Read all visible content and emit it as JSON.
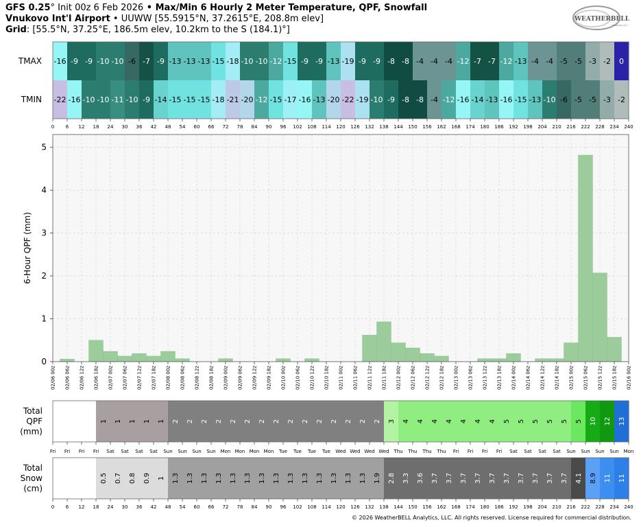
{
  "header": {
    "line1_model": "GFS 0.25",
    "line1_init": "° Init 00z 6 Feb 2026",
    "line1_title": " • Max/Min 6 Hourly 2 Meter Temperature,  QPF,  Snowfall",
    "line2_station": "Vnukovo Int'l Airport",
    "line2_rest": " • UUWW [55.5915°N, 37.2615°E, 208.8m elev]",
    "line3_label": "Grid",
    "line3_rest": ": [55.5°N, 37.25°E, 186.5m elev, 10.2km to the S (184.1)°]"
  },
  "logo": {
    "text": "WEATHERBELL",
    "sub": "Analytics LLC"
  },
  "copyright": "© 2026 WeatherBELL Analytics, LLC. All rights reserved. License required for commercial distribution.",
  "chart_data": [
    {
      "type": "table",
      "name": "temperature",
      "rows": [
        {
          "label": "TMAX",
          "values": [
            -16,
            -9,
            -9,
            -10,
            -10,
            -6,
            -7,
            -9,
            -13,
            -13,
            -13,
            -15,
            -18,
            -10,
            -10,
            -12,
            -15,
            -9,
            -9,
            -13,
            -19,
            -9,
            -9,
            -8,
            -8,
            -4,
            -4,
            -4,
            -12,
            -7,
            -7,
            -12,
            -13,
            -4,
            -4,
            -5,
            -5,
            -3,
            -2,
            0
          ]
        },
        {
          "label": "TMIN",
          "values": [
            -22,
            -16,
            -10,
            -10,
            -11,
            -10,
            -9,
            -14,
            -15,
            -15,
            -15,
            -18,
            -21,
            -20,
            -12,
            -15,
            -17,
            -16,
            -13,
            -20,
            -22,
            -19,
            -10,
            -9,
            -8,
            -8,
            -4,
            -12,
            -16,
            -14,
            -13,
            -16,
            -15,
            -13,
            -10,
            -6,
            -5,
            -5,
            -3,
            -2
          ]
        }
      ],
      "hour_ticks": [
        0,
        6,
        12,
        18,
        24,
        30,
        36,
        42,
        48,
        54,
        60,
        66,
        72,
        78,
        84,
        90,
        96,
        102,
        108,
        114,
        120,
        126,
        132,
        138,
        144,
        150,
        156,
        162,
        168,
        174,
        180,
        186,
        192,
        198,
        204,
        210,
        216,
        222,
        228,
        234,
        240
      ]
    },
    {
      "type": "bar",
      "ylabel": "6-Hour QPF (mm)",
      "ylim": [
        0,
        5.3
      ],
      "yticks": [
        0,
        1,
        2,
        3,
        4,
        5
      ],
      "grid": true,
      "bar_color": "#9ccc9c",
      "x_labels": [
        "02/06 00z",
        "02/06 06z",
        "02/06 12z",
        "02/06 18z",
        "02/07 00z",
        "02/07 06z",
        "02/07 12z",
        "02/07 18z",
        "02/08 00z",
        "02/08 06z",
        "02/08 12z",
        "02/08 18z",
        "02/09 00z",
        "02/09 06z",
        "02/09 12z",
        "02/09 18z",
        "02/10 00z",
        "02/10 06z",
        "02/10 12z",
        "02/10 18z",
        "02/11 00z",
        "02/11 06z",
        "02/11 12z",
        "02/11 18z",
        "02/12 00z",
        "02/12 06z",
        "02/12 12z",
        "02/12 18z",
        "02/13 00z",
        "02/13 06z",
        "02/13 12z",
        "02/13 18z",
        "02/14 00z",
        "02/14 06z",
        "02/14 12z",
        "02/14 18z",
        "02/15 00z",
        "02/15 06z",
        "02/15 12z",
        "02/15 18z",
        "02/16 00z"
      ],
      "values": [
        0.06,
        0,
        0.5,
        0.24,
        0.13,
        0.19,
        0.13,
        0.24,
        0.07,
        0,
        0,
        0.07,
        0,
        0,
        0,
        0.07,
        0,
        0.07,
        0,
        0,
        0,
        0.62,
        0.93,
        0.44,
        0.32,
        0.19,
        0.13,
        0,
        0,
        0.07,
        0.07,
        0.19,
        0,
        0.07,
        0.07,
        0.44,
        4.82,
        2.07,
        0.57,
        0,
        0
      ]
    },
    {
      "type": "table",
      "name": "total_qpf",
      "label_lines": [
        "Total",
        "QPF",
        "(mm)"
      ],
      "values": [
        "",
        "",
        "",
        "1",
        "1",
        "1",
        "1",
        "1",
        "2",
        "2",
        "2",
        "2",
        "2",
        "2",
        "2",
        "2",
        "2",
        "2",
        "2",
        "2",
        "2",
        "2",
        "2",
        "3",
        "4",
        "4",
        "4",
        "4",
        "4",
        "4",
        "4",
        "5",
        "5",
        "5",
        "5",
        "5",
        "5",
        "10",
        "12",
        "13"
      ],
      "colors": [
        "#ffffff",
        "#ffffff",
        "#ffffff",
        "#a8a0a0",
        "#a8a0a0",
        "#a8a0a0",
        "#a8a0a0",
        "#a8a0a0",
        "#808080",
        "#808080",
        "#808080",
        "#808080",
        "#808080",
        "#808080",
        "#808080",
        "#808080",
        "#808080",
        "#808080",
        "#808080",
        "#808080",
        "#808080",
        "#808080",
        "#808080",
        "#b4f2a4",
        "#90ee80",
        "#90ee80",
        "#90ee80",
        "#90ee80",
        "#90ee80",
        "#90ee80",
        "#90ee80",
        "#90ee80",
        "#90ee80",
        "#90ee80",
        "#90ee80",
        "#90ee80",
        "#6ce860",
        "#15ab15",
        "#109810",
        "#1f6fd6"
      ],
      "day_labels": [
        "Fri",
        "Fri",
        "Fri",
        "Fri",
        "Sat",
        "Sat",
        "Sat",
        "Sat",
        "Sun",
        "Sun",
        "Sun",
        "Sun",
        "Mon",
        "Mon",
        "Mon",
        "Mon",
        "Tue",
        "Tue",
        "Tue",
        "Tue",
        "Wed",
        "Wed",
        "Wed",
        "Wed",
        "Thu",
        "Thu",
        "Thu",
        "Thu",
        "Fri",
        "Fri",
        "Fri",
        "Fri",
        "Sat",
        "Sat",
        "Sat",
        "Sat",
        "Sun",
        "Sun",
        "Sun",
        "Sun",
        "Mon"
      ]
    },
    {
      "type": "table",
      "name": "total_snow",
      "label_lines": [
        "Total",
        "Snow",
        "(cm)"
      ],
      "values": [
        "",
        "",
        "",
        "0.5",
        "0.7",
        "0.8",
        "0.9",
        "1",
        "1.3",
        "1.3",
        "1.3",
        "1.3",
        "1.3",
        "1.3",
        "1.3",
        "1.3",
        "1.3",
        "1.3",
        "1.3",
        "1.3",
        "1.3",
        "1.3",
        "1.9",
        "2.8",
        "3.3",
        "3.6",
        "3.7",
        "3.7",
        "3.7",
        "3.7",
        "3.7",
        "3.7",
        "3.7",
        "3.7",
        "3.7",
        "3.7",
        "4.1",
        "8.9",
        "11",
        "11"
      ],
      "colors": [
        "#ffffff",
        "#ffffff",
        "#ffffff",
        "#dcdcdc",
        "#dcdcdc",
        "#dcdcdc",
        "#dcdcdc",
        "#dcdcdc",
        "#a0a0a0",
        "#a0a0a0",
        "#a0a0a0",
        "#a0a0a0",
        "#a0a0a0",
        "#a0a0a0",
        "#a0a0a0",
        "#a0a0a0",
        "#a0a0a0",
        "#a0a0a0",
        "#a0a0a0",
        "#a0a0a0",
        "#a0a0a0",
        "#a0a0a0",
        "#a0a0a0",
        "#6e6e6e",
        "#6e6e6e",
        "#6e6e6e",
        "#6e6e6e",
        "#6e6e6e",
        "#6e6e6e",
        "#6e6e6e",
        "#6e6e6e",
        "#6e6e6e",
        "#6e6e6e",
        "#6e6e6e",
        "#6e6e6e",
        "#6e6e6e",
        "#4a4a4a",
        "#5aa0f5",
        "#3c8ff0",
        "#2e7fe8"
      ]
    }
  ]
}
